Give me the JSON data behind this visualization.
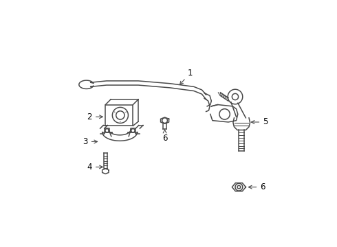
{
  "background_color": "#ffffff",
  "line_color": "#4a4a4a",
  "label_color": "#000000",
  "figsize": [
    4.9,
    3.6
  ],
  "dpi": 100
}
